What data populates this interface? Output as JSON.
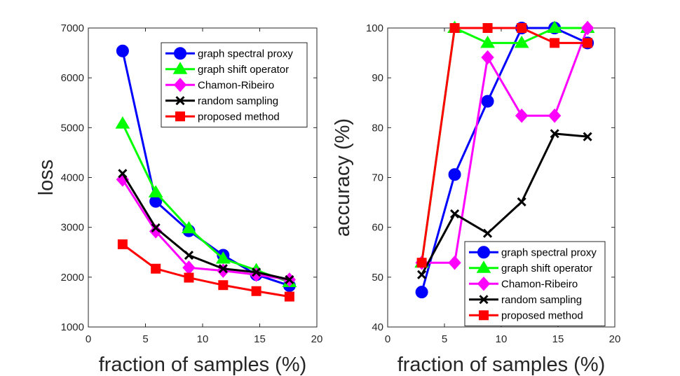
{
  "chart_data": [
    {
      "type": "line",
      "title": "",
      "xlabel": "fraction of samples (%)",
      "ylabel": "loss",
      "xlim": [
        0,
        20
      ],
      "ylim": [
        1000,
        7000
      ],
      "xticks": [
        0,
        5,
        10,
        15,
        20
      ],
      "yticks": [
        1000,
        2000,
        3000,
        4000,
        5000,
        6000,
        7000
      ],
      "xtick_labels": [
        "0",
        "5",
        "10",
        "15",
        "20"
      ],
      "ytick_labels": [
        "1000",
        "2000",
        "3000",
        "4000",
        "5000",
        "6000",
        "7000"
      ],
      "grid": false,
      "legend_position": "top-right",
      "x": [
        3,
        5.9,
        8.8,
        11.8,
        14.7,
        17.6
      ],
      "series": [
        {
          "name": "graph spectral proxy",
          "color": "#0000ff",
          "marker": "circle",
          "values": [
            6540,
            3520,
            2930,
            2440,
            2050,
            1830
          ]
        },
        {
          "name": "graph shift operator",
          "color": "#00ff00",
          "marker": "triangle",
          "values": [
            5080,
            3700,
            2980,
            2370,
            2140,
            1900
          ]
        },
        {
          "name": "Chamon-Ribeiro",
          "color": "#ff00ff",
          "marker": "diamond",
          "values": [
            3960,
            2920,
            2190,
            2130,
            2050,
            1950
          ]
        },
        {
          "name": "random sampling",
          "color": "#000000",
          "marker": "x",
          "values": [
            4080,
            2990,
            2440,
            2170,
            2100,
            1950
          ]
        },
        {
          "name": "proposed method",
          "color": "#ff0000",
          "marker": "square",
          "values": [
            2660,
            2170,
            1990,
            1840,
            1720,
            1610
          ]
        }
      ]
    },
    {
      "type": "line",
      "title": "",
      "xlabel": "fraction of samples (%)",
      "ylabel": "accuracy (%)",
      "xlim": [
        0,
        20
      ],
      "ylim": [
        40,
        100
      ],
      "xticks": [
        0,
        5,
        10,
        15,
        20
      ],
      "yticks": [
        40,
        50,
        60,
        70,
        80,
        90,
        100
      ],
      "xtick_labels": [
        "0",
        "5",
        "10",
        "15",
        "20"
      ],
      "ytick_labels": [
        "40",
        "50",
        "60",
        "70",
        "80",
        "90",
        "100"
      ],
      "grid": false,
      "legend_position": "bottom-right",
      "x": [
        3,
        5.9,
        8.8,
        11.8,
        14.7,
        17.6
      ],
      "series": [
        {
          "name": "graph spectral proxy",
          "color": "#0000ff",
          "marker": "circle",
          "values": [
            47,
            70.6,
            85.3,
            100,
            100,
            97
          ]
        },
        {
          "name": "graph shift operator",
          "color": "#00ff00",
          "marker": "triangle",
          "values": [
            52.9,
            100,
            97,
            97,
            100,
            100
          ]
        },
        {
          "name": "Chamon-Ribeiro",
          "color": "#ff00ff",
          "marker": "diamond",
          "values": [
            52.9,
            52.9,
            94.1,
            82.4,
            82.4,
            100
          ]
        },
        {
          "name": "random sampling",
          "color": "#000000",
          "marker": "x",
          "values": [
            50.5,
            62.7,
            58.8,
            65.1,
            78.8,
            78.2
          ]
        },
        {
          "name": "proposed method",
          "color": "#ff0000",
          "marker": "square",
          "values": [
            52.9,
            100,
            100,
            100,
            97,
            97
          ]
        }
      ]
    }
  ]
}
